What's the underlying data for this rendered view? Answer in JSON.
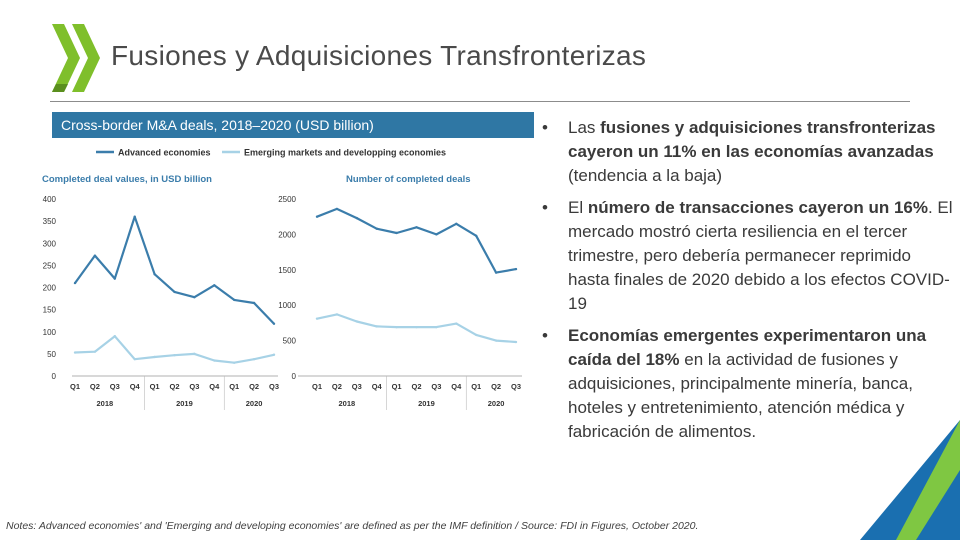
{
  "title": "Fusiones y Adquisiciones Transfronterizas",
  "chart_header": "Cross-border M&A deals, 2018–2020 (USD billion)",
  "colors": {
    "accent": "#2f77a4",
    "advanced": "#3b7dab",
    "emerging": "#a7d2e6",
    "logo_green": "#7fbf2b",
    "corner_green": "#7fc742",
    "corner_blue": "#1a6fb0"
  },
  "chart_data": {
    "type": "line",
    "legend": [
      "Advanced economies",
      "Emerging markets and developping economies"
    ],
    "legend_position": "top",
    "panels": [
      {
        "title": "Completed deal values, in USD billion",
        "categories": [
          "Q1",
          "Q2",
          "Q3",
          "Q4",
          "Q1",
          "Q2",
          "Q3",
          "Q4",
          "Q1",
          "Q2",
          "Q3"
        ],
        "year_labels": [
          "2018",
          "2019",
          "2020"
        ],
        "ylim": [
          0,
          400
        ],
        "yticks": [
          "0",
          "50",
          "100",
          "150",
          "200",
          "250",
          "300",
          "350",
          "400"
        ],
        "series": [
          {
            "name": "Advanced economies",
            "values": [
              210,
              272,
              220,
              360,
              230,
              190,
              178,
              205,
              172,
              165,
              118
            ]
          },
          {
            "name": "Emerging markets and developping economies",
            "values": [
              53,
              55,
              90,
              38,
              43,
              47,
              50,
              35,
              30,
              38,
              48
            ]
          }
        ]
      },
      {
        "title": "Number of completed deals",
        "categories": [
          "Q1",
          "Q2",
          "Q3",
          "Q4",
          "Q1",
          "Q2",
          "Q3",
          "Q4",
          "Q1",
          "Q2",
          "Q3"
        ],
        "year_labels": [
          "2018",
          "2019",
          "2020"
        ],
        "ylim": [
          0,
          2500
        ],
        "yticks": [
          "0",
          "500",
          "1000",
          "1500",
          "2000",
          "2500"
        ],
        "series": [
          {
            "name": "Advanced economies",
            "values": [
              2250,
              2360,
              2230,
              2080,
              2020,
              2100,
              2000,
              2150,
              1980,
              1460,
              1510
            ]
          },
          {
            "name": "Emerging markets and developping economies",
            "values": [
              810,
              870,
              770,
              700,
              690,
              690,
              690,
              740,
              580,
              500,
              480
            ]
          }
        ]
      }
    ]
  },
  "bullets": [
    {
      "parts": [
        {
          "t": "Las ",
          "b": false
        },
        {
          "t": "fusiones y adquisiciones transfronterizas cayeron un 11% en las economías avanzadas",
          "b": true
        },
        {
          "t": " (tendencia a la baja)",
          "b": false
        }
      ]
    },
    {
      "parts": [
        {
          "t": "El ",
          "b": false
        },
        {
          "t": "número de transacciones cayeron un 16%",
          "b": true
        },
        {
          "t": ". El mercado mostró cierta resiliencia en el tercer trimestre, pero debería permanecer reprimido hasta finales de 2020 debido a los efectos COVID-19",
          "b": false
        }
      ]
    },
    {
      "parts": [
        {
          "t": "Economías emergentes experimentaron una caída del 18%",
          "b": true
        },
        {
          "t": " en la actividad de fusiones y adquisiciones, principalmente minería, banca, hoteles y entretenimiento, atención médica y fabricación de alimentos.",
          "b": false
        }
      ]
    }
  ],
  "bullet_symbol": "•",
  "note": "Notes: Advanced economies' and 'Emerging and developing economies' are defined as per the IMF definition / Source: FDI in Figures, October 2020."
}
